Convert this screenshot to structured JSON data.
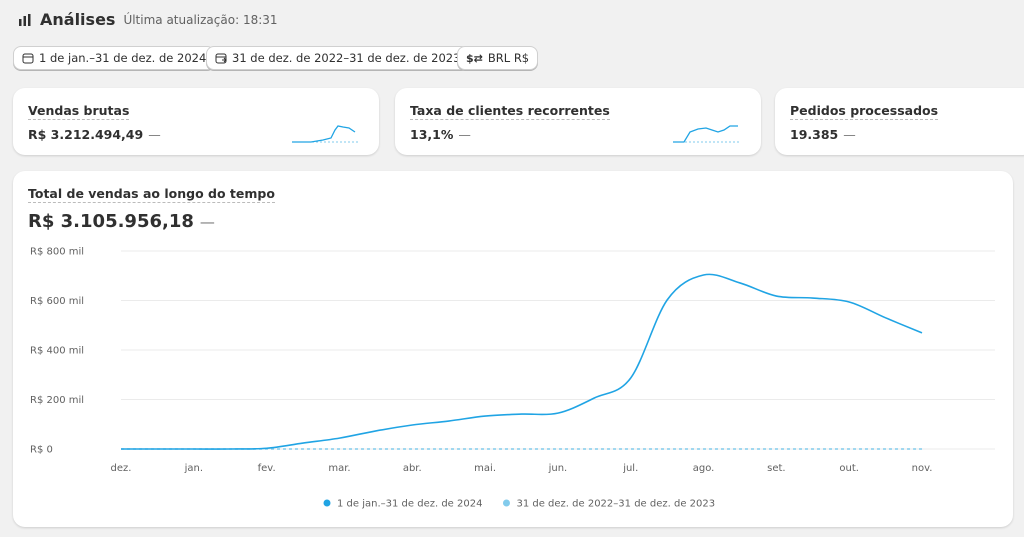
{
  "header": {
    "title": "Análises",
    "updated": "Última atualização: 18:31"
  },
  "filters": [
    "1 de jan.–31 de dez. de 2024",
    "31 de dez. de 2022–31 de dez. de 2023",
    "BRL R$"
  ],
  "cards": [
    {
      "title": "Vendas brutas",
      "value": "R$ 3.212.494,49",
      "change": "—"
    },
    {
      "title": "Taxa de clientes recorrentes",
      "value": "13,1%",
      "change": "—"
    },
    {
      "title": "Pedidos processados",
      "value": "19.385",
      "change": "—"
    }
  ],
  "chart_data": {
    "type": "line",
    "title": "Total de vendas ao longo do tempo",
    "total": "R$ 3.105.956,18",
    "change": "—",
    "categories": [
      "dez.",
      null,
      "jan.",
      null,
      "fev.",
      null,
      "mar.",
      null,
      "abr.",
      null,
      "mai.",
      null,
      "jun.",
      null,
      "jul.",
      null,
      "ago.",
      null,
      "set.",
      null,
      "out.",
      null,
      "nov."
    ],
    "series": [
      {
        "name": "1 de jan.–31 de dez. de 2024",
        "color": "#20a4e4",
        "values": [
          0,
          0,
          0,
          0,
          3000,
          24000,
          44000,
          73000,
          97000,
          113000,
          133000,
          141000,
          145000,
          206000,
          287000,
          602000,
          703000,
          671000,
          618000,
          610000,
          594000,
          530000,
          469000
        ]
      },
      {
        "name": "31 de dez. de 2022–31 de dez. de 2023",
        "color": "#82cbec",
        "dashed": true,
        "values": [
          0,
          0,
          0,
          0,
          0,
          0,
          0,
          0,
          0,
          0,
          0,
          0,
          0,
          0,
          0,
          0,
          0,
          0,
          0,
          0,
          0,
          0,
          0
        ]
      }
    ],
    "ylim": [
      0,
      800000
    ],
    "yticks": [
      {
        "value": 0,
        "label": "R$ 0"
      },
      {
        "value": 200000,
        "label": "R$ 200 mil"
      },
      {
        "value": 400000,
        "label": "R$ 400 mil"
      },
      {
        "value": 600000,
        "label": "R$ 600 mil"
      },
      {
        "value": 800000,
        "label": "R$ 800 mil"
      }
    ],
    "grid": true
  }
}
